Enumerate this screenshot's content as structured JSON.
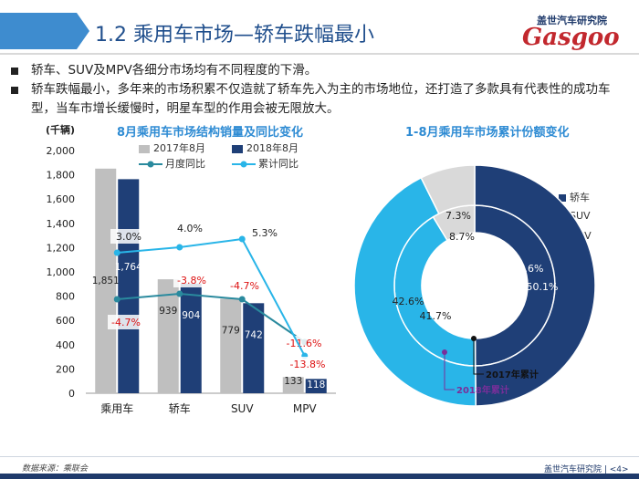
{
  "header": {
    "title": "1.2 乘用车市场—轿车跌幅最小",
    "logo_cn": "盖世汽车研究院",
    "logo_en": "Gasgoo"
  },
  "bullets": [
    "轿车、SUV及MPV各细分市场均有不同程度的下滑。",
    "轿车跌幅最小，多年来的市场积累不仅造就了轿车先入为主的市场地位，还打造了多款具有代表性的成功车型，当车市增长缓慢时，明星车型的作用会被无限放大。"
  ],
  "colors": {
    "bar_2017": "#bfbfbf",
    "bar_2018": "#1f3f77",
    "line_monthly": "#2a8a9e",
    "line_cumulative": "#29b5e8",
    "donut_sedan": "#1f3f77",
    "donut_suv": "#29b5e8",
    "donut_mpv": "#d9d9d9"
  },
  "chart_data": [
    {
      "type": "bar",
      "title": "8月乘用车市场结构销量及同比变化",
      "ylabel": "(千辆)",
      "ylim": [
        0,
        2000
      ],
      "yticks": [
        "0",
        "200",
        "400",
        "600",
        "800",
        "1,000",
        "1,200",
        "1,400",
        "1,600",
        "1,800",
        "2,000"
      ],
      "categories": [
        "乘用车",
        "轿车",
        "SUV",
        "MPV"
      ],
      "series": [
        {
          "name": "2017年8月",
          "values": [
            1851,
            939,
            779,
            133
          ],
          "labels": [
            "1,851",
            "939",
            "779",
            "133"
          ]
        },
        {
          "name": "2018年8月",
          "values": [
            1764,
            904,
            742,
            118
          ],
          "labels": [
            "1,764",
            "904",
            "742",
            "118"
          ]
        }
      ],
      "lines": [
        {
          "name": "月度同比",
          "values_pct": [
            -4.7,
            -3.8,
            -4.7,
            -11.6
          ],
          "labels": [
            "-4.7%",
            "-3.8%",
            "-4.7%",
            "-11.6%"
          ]
        },
        {
          "name": "累计同比",
          "values_pct": [
            3.0,
            4.0,
            5.3,
            -13.8
          ],
          "labels": [
            "3.0%",
            "4.0%",
            "5.3%",
            "-13.8%"
          ]
        }
      ]
    },
    {
      "type": "pie",
      "title": "1-8月乘用车市场累计份额变化",
      "categories": [
        "轿车",
        "SUV",
        "MPV"
      ],
      "series": [
        {
          "name": "2017年累计",
          "values": [
            50.1,
            41.7,
            8.7
          ],
          "labels": [
            "50.1%",
            "41.7%",
            "8.7%"
          ]
        },
        {
          "name": "2018年累计",
          "values": [
            49.6,
            42.6,
            7.3
          ],
          "labels": [
            "49.6%",
            "42.6%",
            "7.3%"
          ]
        }
      ]
    }
  ],
  "footer": {
    "source": "数据来源：乘联会",
    "org": "盖世汽车研究院 | <4>"
  }
}
